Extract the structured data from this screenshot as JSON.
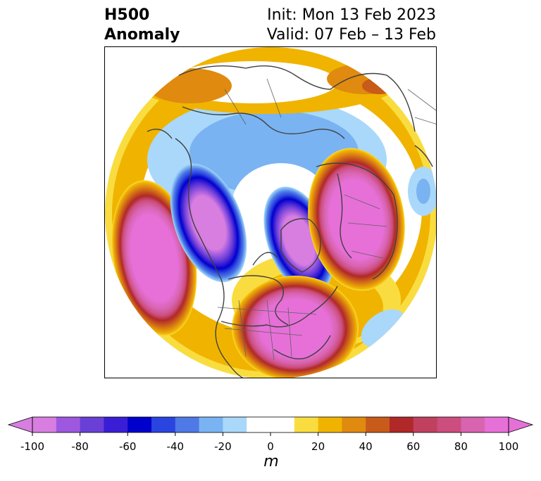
{
  "title": {
    "left_line1": "H500",
    "left_line2": "Anomaly",
    "right_line1": "Init: Mon 13 Feb 2023",
    "right_line2": "Valid: 07 Feb – 13 Feb"
  },
  "colorbar": {
    "unit": "m",
    "ticks": [
      "-100",
      "-80",
      "-60",
      "-40",
      "-20",
      "0",
      "20",
      "40",
      "60",
      "80",
      "100"
    ],
    "colors": [
      "#d77ee0",
      "#9e58e0",
      "#6a3fd6",
      "#3a1ed6",
      "#0000cc",
      "#2a44e0",
      "#4f79e6",
      "#7ab3f2",
      "#a9d8fa",
      "#ffffff",
      "#ffffff",
      "#f9dd40",
      "#f0b400",
      "#e08a10",
      "#c85a1a",
      "#b02828",
      "#c04060",
      "#cc4e7e",
      "#d864b0",
      "#e670d8"
    ],
    "under_color": "#d77ee0",
    "over_color": "#e670d8"
  }
}
